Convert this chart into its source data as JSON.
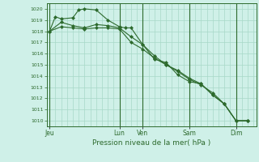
{
  "background_color": "#cff0e8",
  "grid_color": "#a8d8c8",
  "line_color": "#2d6a2d",
  "marker_color": "#2d6a2d",
  "xlabel_text": "Pression niveau de la mer( hPa )",
  "ylim": [
    1009.5,
    1020.5
  ],
  "yticks": [
    1010,
    1011,
    1012,
    1013,
    1014,
    1015,
    1016,
    1017,
    1018,
    1019,
    1020
  ],
  "day_labels": [
    "Jeu",
    "Lun",
    "Ven",
    "Sam",
    "Dim"
  ],
  "day_positions": [
    0,
    12,
    16,
    24,
    32
  ],
  "xlim": [
    -0.5,
    35.5
  ],
  "series1_x": [
    0,
    1,
    2,
    4,
    5,
    6,
    8,
    10,
    12,
    13,
    14,
    16,
    18,
    20,
    22,
    24,
    26,
    28,
    30,
    32,
    34
  ],
  "series1_y": [
    1018.0,
    1019.3,
    1019.1,
    1019.2,
    1019.9,
    1020.0,
    1019.9,
    1019.0,
    1018.4,
    1018.3,
    1018.3,
    1016.8,
    1015.5,
    1015.2,
    1014.1,
    1013.5,
    1013.3,
    1012.3,
    1011.5,
    1010.0,
    1010.0
  ],
  "series2_x": [
    0,
    2,
    4,
    6,
    8,
    10,
    12,
    14,
    16,
    18,
    20,
    22,
    24,
    26,
    28,
    30,
    32,
    34
  ],
  "series2_y": [
    1018.0,
    1018.8,
    1018.5,
    1018.3,
    1018.6,
    1018.5,
    1018.3,
    1017.5,
    1016.8,
    1015.8,
    1015.0,
    1014.5,
    1013.8,
    1013.3,
    1012.3,
    1011.5,
    1010.0,
    1010.0
  ],
  "series3_x": [
    0,
    2,
    4,
    6,
    8,
    10,
    12,
    14,
    16,
    18,
    20,
    22,
    24,
    26,
    28,
    30,
    32,
    34
  ],
  "series3_y": [
    1018.0,
    1018.4,
    1018.3,
    1018.2,
    1018.3,
    1018.3,
    1018.2,
    1017.0,
    1016.4,
    1015.6,
    1015.0,
    1014.4,
    1013.7,
    1013.2,
    1012.5,
    1011.5,
    1010.0,
    1010.0
  ]
}
